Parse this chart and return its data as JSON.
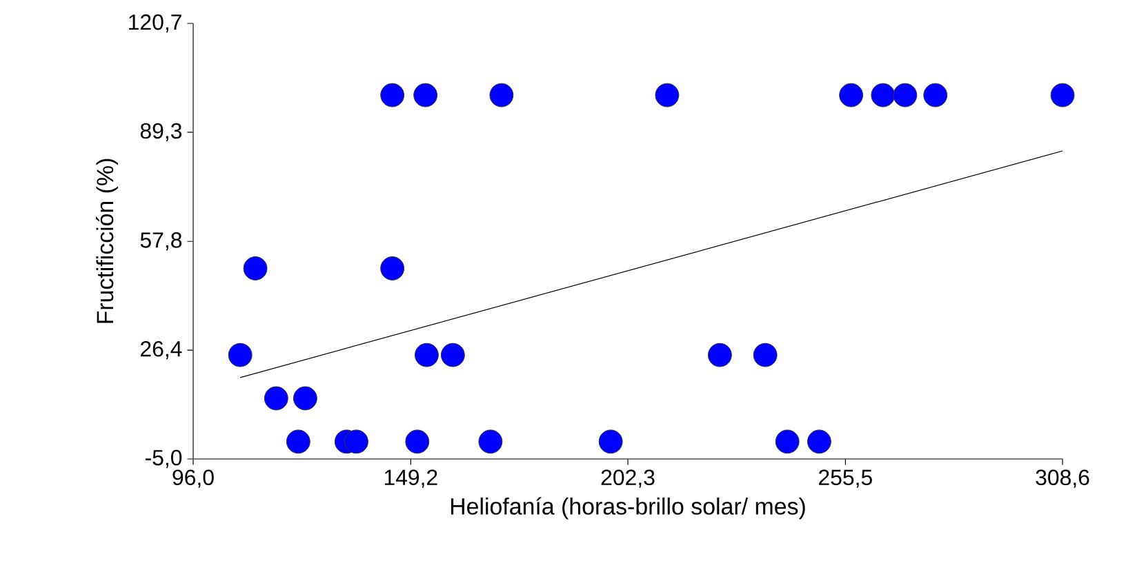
{
  "chart_data": {
    "type": "scatter",
    "xlabel": "Heliofanía (horas-brillo solar/ mes)",
    "ylabel": "Fructificción (%)",
    "xlim": [
      96.0,
      308.6
    ],
    "ylim": [
      -5.0,
      120.7
    ],
    "xticks": [
      {
        "value": 96.0,
        "label": "96,0"
      },
      {
        "value": 149.2,
        "label": "149,2"
      },
      {
        "value": 202.3,
        "label": "202,3"
      },
      {
        "value": 255.5,
        "label": "255,5"
      },
      {
        "value": 308.6,
        "label": "308,6"
      }
    ],
    "yticks": [
      {
        "value": -5.0,
        "label": "-5,0"
      },
      {
        "value": 26.4,
        "label": "26,4"
      },
      {
        "value": 57.8,
        "label": "57,8"
      },
      {
        "value": 89.3,
        "label": "89,3"
      },
      {
        "value": 120.7,
        "label": "120,7"
      }
    ],
    "grid": false,
    "series": [
      {
        "marker": "circle",
        "color": "#0000ff",
        "x": [
          144.7,
          152.8,
          171.4,
          211.9,
          256.9,
          264.7,
          270.1,
          277.5,
          308.6,
          111.2,
          144.7,
          107.5,
          153.1,
          159.5,
          224.8,
          235.9,
          116.3,
          123.4,
          121.7,
          133.5,
          135.9,
          150.8,
          168.7,
          198.1,
          241.3,
          249.1
        ],
        "values": [
          100,
          100,
          100,
          100,
          100,
          100,
          100,
          100,
          100,
          50,
          50,
          25,
          25,
          25,
          25,
          25,
          12.5,
          12.5,
          0,
          0,
          0,
          0,
          0,
          0,
          0,
          0
        ]
      },
      {
        "type": "line",
        "marker": "none",
        "color": "#000000",
        "x": [
          107.5,
          308.6
        ],
        "values": [
          18.5,
          83.9
        ]
      }
    ]
  }
}
